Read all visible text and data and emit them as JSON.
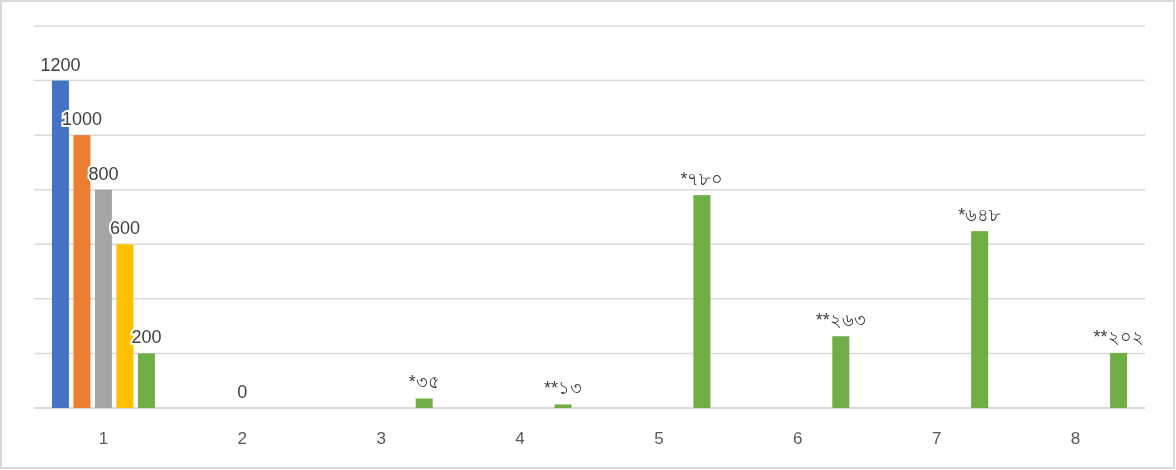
{
  "chart_data": {
    "type": "bar",
    "categories": [
      "1",
      "2",
      "3",
      "4",
      "5",
      "6",
      "7",
      "8"
    ],
    "series": [
      {
        "color": "#4472c4",
        "values": [
          1200,
          null,
          null,
          null,
          null,
          null,
          null,
          null
        ],
        "value_labels": [
          "1200",
          null,
          null,
          null,
          null,
          null,
          null,
          null
        ]
      },
      {
        "color": "#ed7d31",
        "values": [
          1000,
          null,
          null,
          null,
          null,
          null,
          null,
          null
        ],
        "value_labels": [
          "1000",
          null,
          null,
          null,
          null,
          null,
          null,
          null
        ]
      },
      {
        "color": "#a5a5a5",
        "values": [
          800,
          0,
          null,
          null,
          null,
          null,
          null,
          null
        ],
        "value_labels": [
          "800",
          "0",
          null,
          null,
          null,
          null,
          null,
          null
        ]
      },
      {
        "color": "#ffc000",
        "values": [
          600,
          null,
          null,
          null,
          null,
          null,
          null,
          null
        ],
        "value_labels": [
          "600",
          null,
          null,
          null,
          null,
          null,
          null,
          null
        ]
      },
      {
        "color": "#70ad47",
        "values": [
          200,
          null,
          35,
          13,
          780,
          263,
          648,
          202
        ],
        "value_labels": [
          "200",
          null,
          "*৩৫",
          "**১৩",
          "*৭৮০",
          "**২৬৩",
          "*৬৪৮",
          "**২০২"
        ]
      }
    ],
    "ylim": [
      0,
      1400
    ],
    "yticks": [
      {
        "value": 0,
        "label": null
      },
      {
        "value": 200,
        "label": null
      },
      {
        "value": 400,
        "label": null
      },
      {
        "value": 600,
        "label": null
      },
      {
        "value": 800,
        "label": null
      },
      {
        "value": 1000,
        "label": null
      },
      {
        "value": 1200,
        "label": null
      },
      {
        "value": 1400,
        "label": null
      }
    ],
    "grid": "y",
    "tick_labels": "x"
  }
}
